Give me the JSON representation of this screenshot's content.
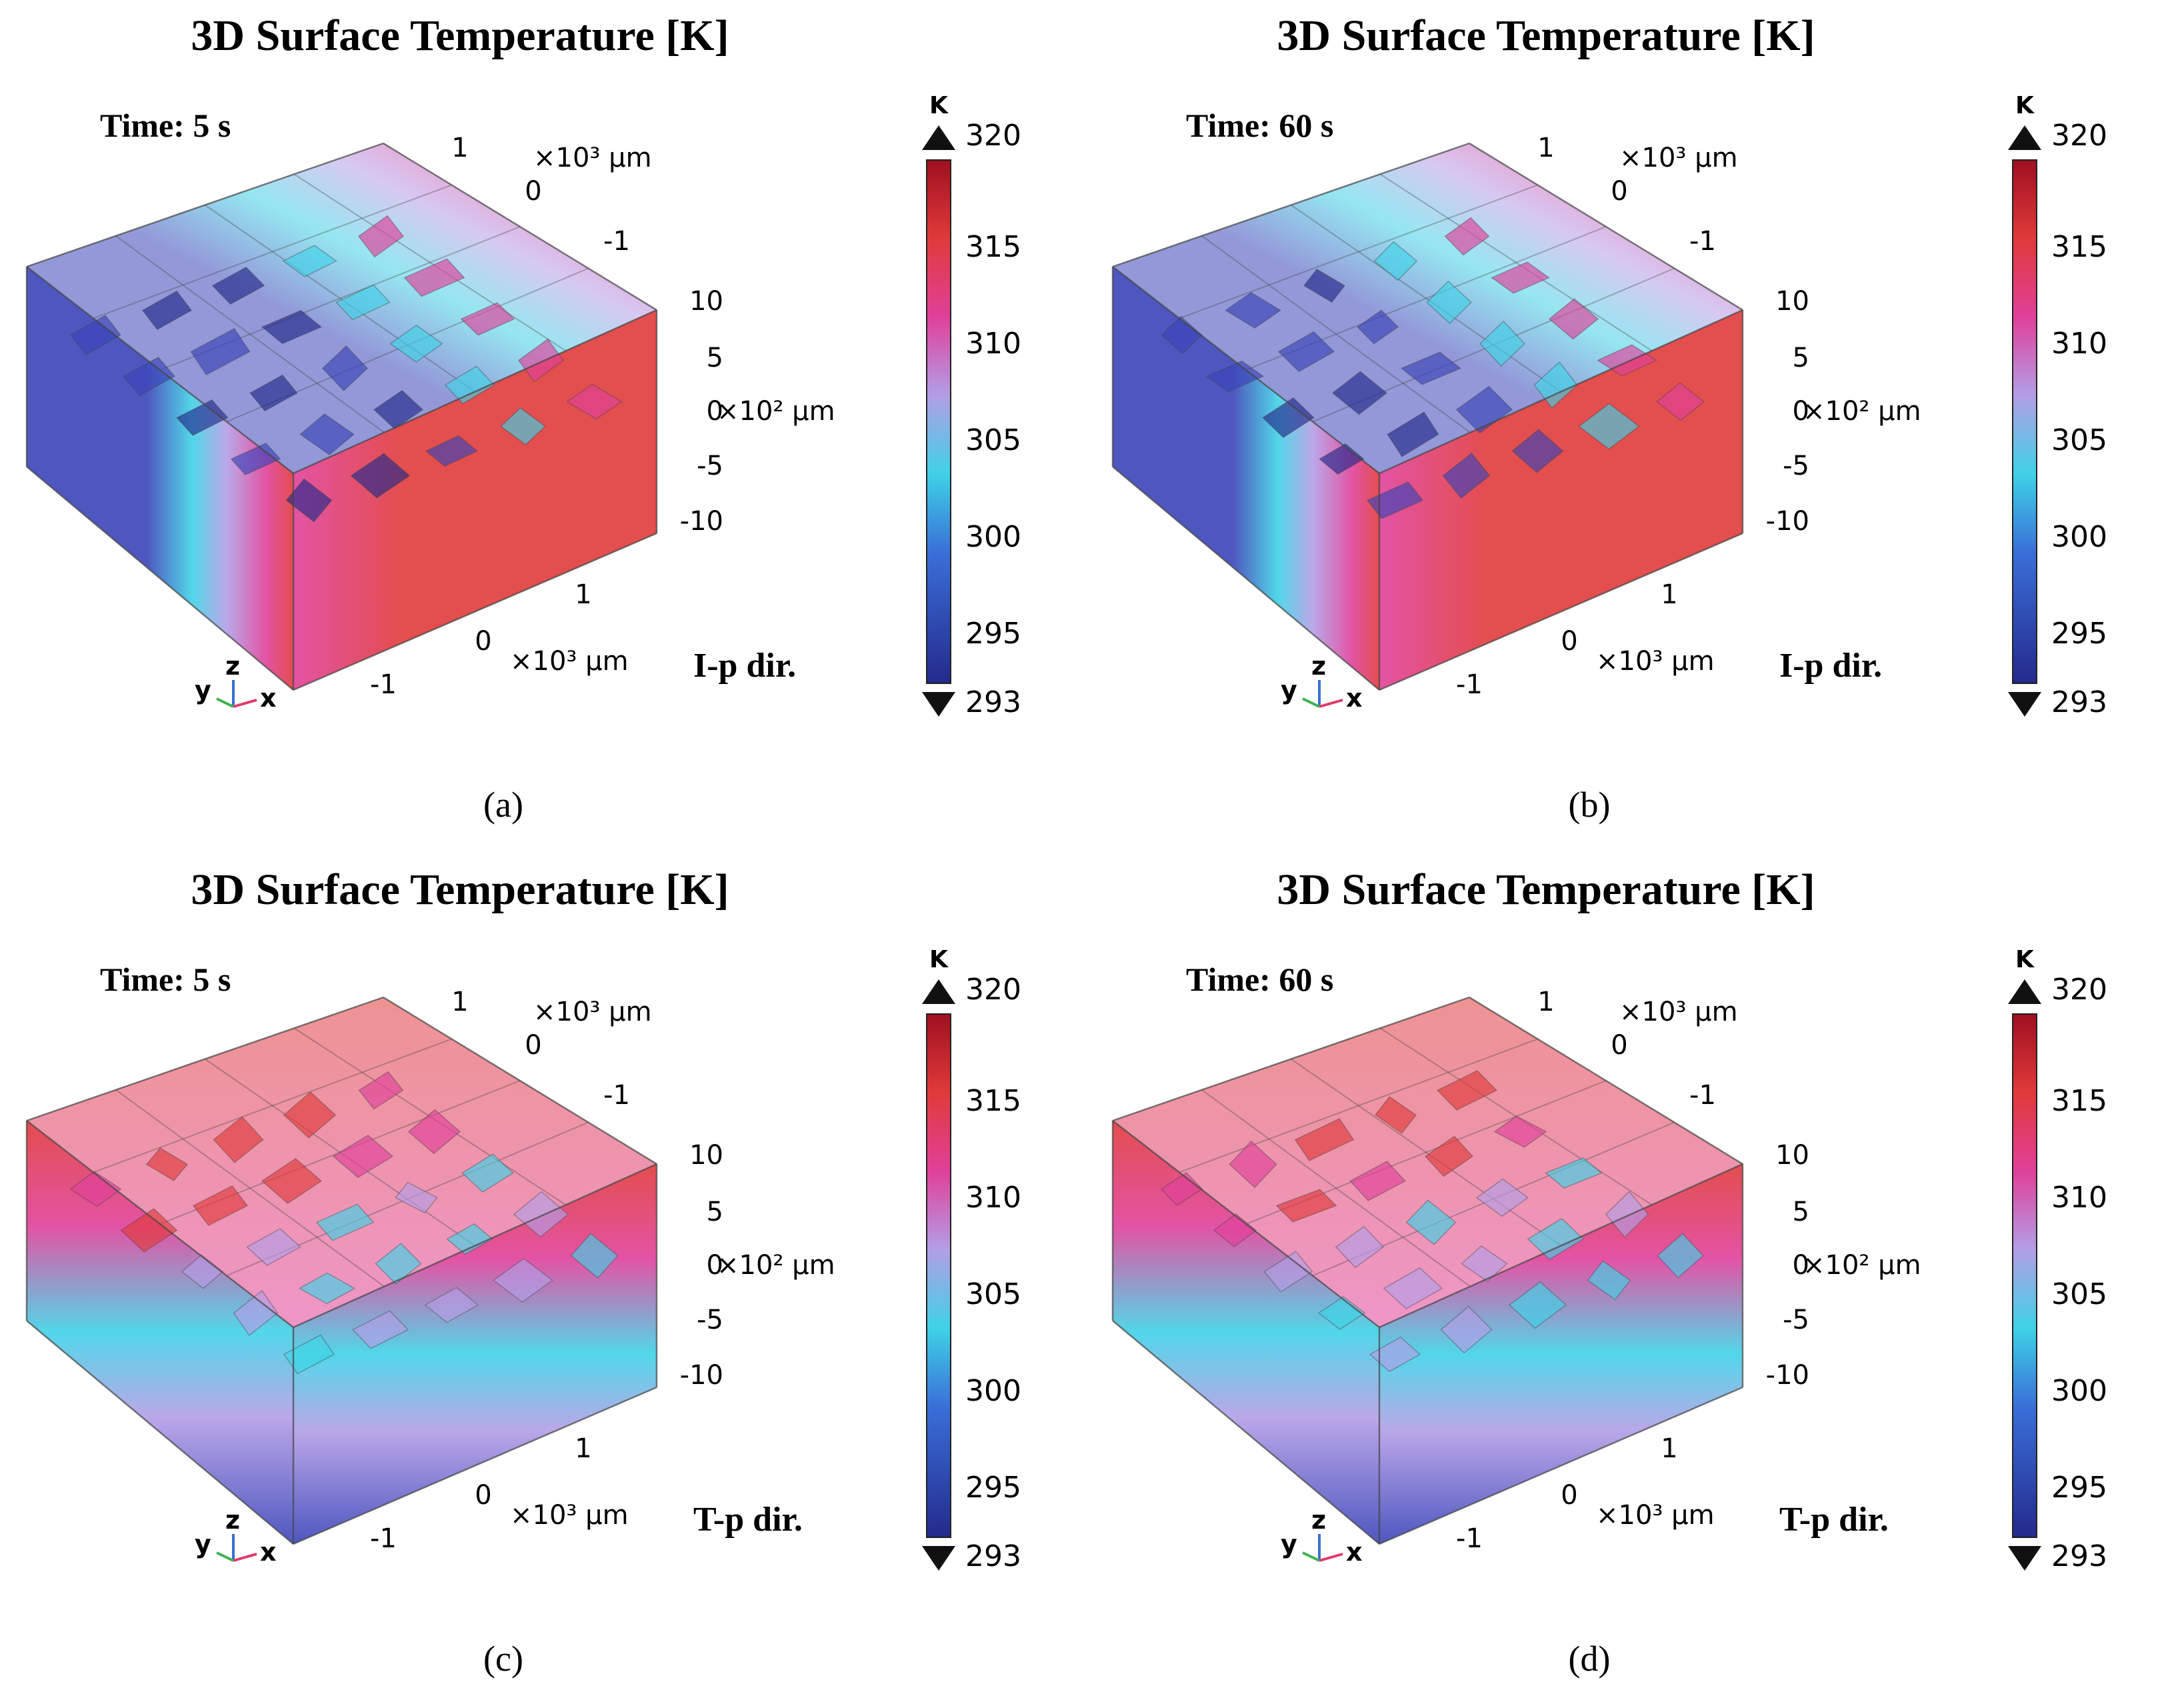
{
  "colors": {
    "cold": "#3a44b8",
    "cyan": "#3fd2e6",
    "mid": "#b39ee6",
    "magenta": "#e0409a",
    "hot": "#e03a3a",
    "dark_hot": "#9e1020",
    "dark_cold": "#242a8c",
    "edge": "#444444",
    "text": "#000000"
  },
  "colorbar_ticks": [
    "320",
    "315",
    "310",
    "305",
    "300",
    "295",
    "293"
  ],
  "colorbar_unit": "K",
  "axis_labels": {
    "x_unit": "×10³ µm",
    "y_unit": "×10³ µm",
    "z_unit": "×10² µm",
    "xy_ticks": [
      "1",
      "0",
      "-1"
    ],
    "z_ticks": [
      "10",
      "5",
      "0",
      "-5",
      "-10"
    ],
    "triad": {
      "x": "x",
      "y": "y",
      "z": "z"
    }
  },
  "panels": [
    {
      "id": "a",
      "title": "3D Surface Temperature [K]",
      "time_label": "Time: 5 s",
      "direction_label": "I-p dir.",
      "caption": "(a)"
    },
    {
      "id": "b",
      "title": "3D Surface Temperature [K]",
      "time_label": "Time: 60 s",
      "direction_label": "I-p dir.",
      "caption": "(b)"
    },
    {
      "id": "c",
      "title": "3D Surface Temperature [K]",
      "time_label": "Time: 5 s",
      "direction_label": "T-p dir.",
      "caption": "(c)"
    },
    {
      "id": "d",
      "title": "3D Surface Temperature [K]",
      "time_label": "Time: 60 s",
      "direction_label": "T-p dir.",
      "caption": "(d)"
    }
  ],
  "chart_data": [
    {
      "type": "heatmap",
      "title": "3D Surface Temperature [K]",
      "subtitle": "Time: 5 s",
      "direction": "I-p dir.",
      "colorbar_range": [
        293,
        320
      ],
      "colorbar_ticks": [
        320,
        315,
        310,
        305,
        300,
        295,
        293
      ],
      "x_range_e3um": [
        -1,
        1
      ],
      "y_range_e3um": [
        -1,
        1
      ],
      "z_range_e2um": [
        -10,
        10
      ],
      "gradient_axis": "lateral",
      "min_side_temp_K": 295,
      "max_side_temp_K": 318
    },
    {
      "type": "heatmap",
      "title": "3D Surface Temperature [K]",
      "subtitle": "Time: 60 s",
      "direction": "I-p dir.",
      "colorbar_range": [
        293,
        320
      ],
      "colorbar_ticks": [
        320,
        315,
        310,
        305,
        300,
        295,
        293
      ],
      "x_range_e3um": [
        -1,
        1
      ],
      "y_range_e3um": [
        -1,
        1
      ],
      "z_range_e2um": [
        -10,
        10
      ],
      "gradient_axis": "lateral",
      "min_side_temp_K": 297,
      "max_side_temp_K": 318
    },
    {
      "type": "heatmap",
      "title": "3D Surface Temperature [K]",
      "subtitle": "Time: 5 s",
      "direction": "T-p dir.",
      "colorbar_range": [
        293,
        320
      ],
      "colorbar_ticks": [
        320,
        315,
        310,
        305,
        300,
        295,
        293
      ],
      "x_range_e3um": [
        -1,
        1
      ],
      "y_range_e3um": [
        -1,
        1
      ],
      "z_range_e2um": [
        -10,
        10
      ],
      "gradient_axis": "vertical",
      "min_side_temp_K": 297,
      "max_side_temp_K": 318
    },
    {
      "type": "heatmap",
      "title": "3D Surface Temperature [K]",
      "subtitle": "Time: 60 s",
      "direction": "T-p dir.",
      "colorbar_range": [
        293,
        320
      ],
      "colorbar_ticks": [
        320,
        315,
        310,
        305,
        300,
        295,
        293
      ],
      "x_range_e3um": [
        -1,
        1
      ],
      "y_range_e3um": [
        -1,
        1
      ],
      "z_range_e2um": [
        -10,
        10
      ],
      "gradient_axis": "vertical",
      "min_side_temp_K": 298,
      "max_side_temp_K": 318
    }
  ]
}
